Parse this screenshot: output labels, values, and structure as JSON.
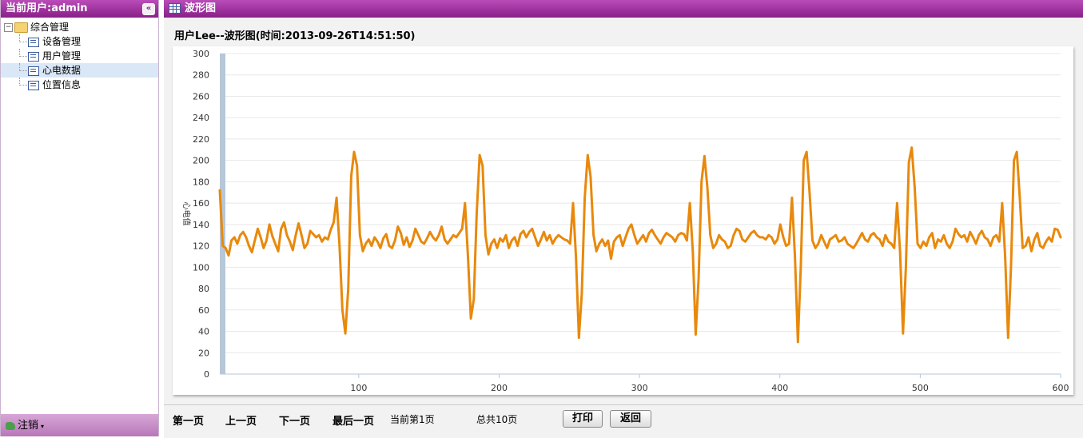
{
  "sidebar": {
    "title": "当前用户:admin",
    "collapse_icon": "«",
    "root": {
      "toggle": "−",
      "label": "综合管理"
    },
    "items": [
      {
        "label": "设备管理",
        "selected": false
      },
      {
        "label": "用户管理",
        "selected": false
      },
      {
        "label": "心电数据",
        "selected": true
      },
      {
        "label": "位置信息",
        "selected": false
      }
    ],
    "footer": {
      "logout_label": "注销",
      "caret": "▾"
    }
  },
  "main": {
    "title": "波形图",
    "chart_caption": "用户Lee--波形图(时间:2013-09-26T14:51:50)"
  },
  "chart_data": {
    "type": "line",
    "title": "用户Lee--波形图(时间:2013-09-26T14:51:50)",
    "xlabel": "",
    "ylabel": "心电值",
    "xlim": [
      1,
      600
    ],
    "ylim": [
      0,
      300
    ],
    "y_ticks": [
      0,
      20,
      40,
      60,
      80,
      100,
      120,
      140,
      160,
      180,
      200,
      220,
      240,
      260,
      280,
      300
    ],
    "x_ticks": [
      100,
      200,
      300,
      400,
      500,
      600
    ],
    "grid": true,
    "line_color": "#e8890c",
    "axis_band_color": "#b6c7d8",
    "series": [
      {
        "values": [
          172,
          120,
          118,
          111,
          125,
          128,
          122,
          130,
          133,
          128,
          120,
          114,
          125,
          136,
          128,
          118,
          125,
          140,
          129,
          122,
          115,
          136,
          142,
          130,
          124,
          116,
          130,
          141,
          130,
          118,
          122,
          134,
          131,
          128,
          130,
          124,
          128,
          126,
          135,
          142,
          165,
          120,
          60,
          38,
          80,
          185,
          208,
          195,
          130,
          115,
          122,
          126,
          120,
          128,
          124,
          118,
          127,
          131,
          120,
          118,
          125,
          138,
          132,
          121,
          128,
          119,
          125,
          136,
          130,
          124,
          122,
          127,
          133,
          128,
          125,
          130,
          138,
          126,
          122,
          126,
          130,
          128,
          132,
          136,
          160,
          110,
          52,
          70,
          150,
          205,
          195,
          130,
          112,
          122,
          126,
          118,
          127,
          124,
          130,
          118,
          125,
          128,
          120,
          131,
          134,
          128,
          133,
          136,
          128,
          120,
          126,
          133,
          125,
          130,
          122,
          127,
          130,
          128,
          126,
          125,
          122,
          160,
          110,
          34,
          75,
          165,
          205,
          185,
          130,
          115,
          122,
          126,
          120,
          125,
          108,
          124,
          128,
          130,
          120,
          128,
          136,
          140,
          130,
          122,
          126,
          130,
          124,
          132,
          135,
          130,
          126,
          122,
          128,
          132,
          130,
          128,
          124,
          130,
          132,
          131,
          125,
          160,
          115,
          37,
          90,
          180,
          204,
          175,
          130,
          118,
          122,
          130,
          126,
          124,
          118,
          120,
          130,
          136,
          134,
          126,
          124,
          128,
          132,
          134,
          130,
          128,
          128,
          126,
          130,
          128,
          122,
          126,
          140,
          128,
          120,
          122,
          165,
          110,
          30,
          100,
          200,
          208,
          170,
          125,
          118,
          122,
          130,
          124,
          118,
          126,
          128,
          130,
          124,
          125,
          128,
          122,
          120,
          118,
          122,
          127,
          132,
          126,
          124,
          130,
          132,
          128,
          126,
          120,
          130,
          124,
          122,
          118,
          160,
          115,
          38,
          100,
          198,
          212,
          175,
          122,
          118,
          124,
          120,
          128,
          132,
          118,
          126,
          124,
          130,
          122,
          118,
          124,
          136,
          131,
          128,
          130,
          124,
          133,
          128,
          122,
          130,
          134,
          128,
          126,
          120,
          128,
          130,
          124,
          160,
          110,
          34,
          100,
          200,
          208,
          165,
          118,
          120,
          128,
          115,
          126,
          132,
          120,
          118,
          124,
          128,
          124,
          136,
          135,
          128
        ]
      }
    ]
  },
  "pager": {
    "first": "第一页",
    "prev": "上一页",
    "next": "下一页",
    "last": "最后一页",
    "current": "当前第1页",
    "total": "总共10页",
    "print": "打印",
    "back": "返回"
  }
}
